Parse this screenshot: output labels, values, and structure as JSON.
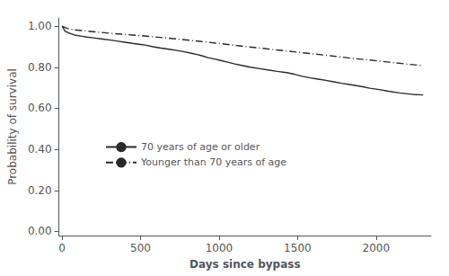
{
  "chart_data": {
    "type": "line",
    "xlabel": "Days since bypass",
    "ylabel": "Probability of survival",
    "xlim": [
      -20,
      2350
    ],
    "ylim": [
      -0.02,
      1.04
    ],
    "xticks": [
      0,
      500,
      1000,
      1500,
      2000
    ],
    "yticks": [
      {
        "value": 0.0,
        "label": "0.00"
      },
      {
        "value": 0.2,
        "label": "0.20"
      },
      {
        "value": 0.4,
        "label": "0.40"
      },
      {
        "value": 0.6,
        "label": "0.60"
      },
      {
        "value": 0.8,
        "label": "0.80"
      },
      {
        "value": 1.0,
        "label": "1.00"
      }
    ],
    "grid": false,
    "legend": "left",
    "series": [
      {
        "name": "70 years of age or older",
        "color": "#2a2a2a",
        "line_style": "solid",
        "x": [
          0,
          20,
          50,
          80,
          120,
          160,
          200,
          250,
          300,
          350,
          400,
          450,
          490,
          530,
          580,
          630,
          680,
          730,
          780,
          830,
          860,
          890,
          930,
          970,
          1010,
          1060,
          1100,
          1150,
          1200,
          1260,
          1310,
          1370,
          1430,
          1480,
          1530,
          1580,
          1630,
          1680,
          1730,
          1780,
          1840,
          1900,
          1960,
          2020,
          2080,
          2150,
          2230,
          2300
        ],
        "values": [
          1.0,
          0.975,
          0.965,
          0.957,
          0.952,
          0.947,
          0.943,
          0.938,
          0.933,
          0.928,
          0.922,
          0.916,
          0.912,
          0.908,
          0.9,
          0.893,
          0.888,
          0.882,
          0.875,
          0.867,
          0.862,
          0.856,
          0.847,
          0.84,
          0.833,
          0.824,
          0.816,
          0.808,
          0.8,
          0.793,
          0.787,
          0.78,
          0.774,
          0.766,
          0.756,
          0.748,
          0.742,
          0.736,
          0.729,
          0.722,
          0.715,
          0.707,
          0.698,
          0.691,
          0.683,
          0.675,
          0.668,
          0.665
        ]
      },
      {
        "name": "Younger than 70 years of age",
        "color": "#2a2a2a",
        "line_style": "dashdot",
        "x": [
          0,
          30,
          80,
          150,
          230,
          330,
          450,
          560,
          670,
          780,
          880,
          1000,
          1120,
          1240,
          1360,
          1480,
          1600,
          1720,
          1840,
          1960,
          2080,
          2200,
          2300
        ],
        "values": [
          1.0,
          0.99,
          0.982,
          0.977,
          0.971,
          0.964,
          0.957,
          0.95,
          0.942,
          0.934,
          0.926,
          0.916,
          0.905,
          0.895,
          0.885,
          0.875,
          0.865,
          0.855,
          0.844,
          0.835,
          0.825,
          0.815,
          0.808
        ]
      }
    ]
  }
}
